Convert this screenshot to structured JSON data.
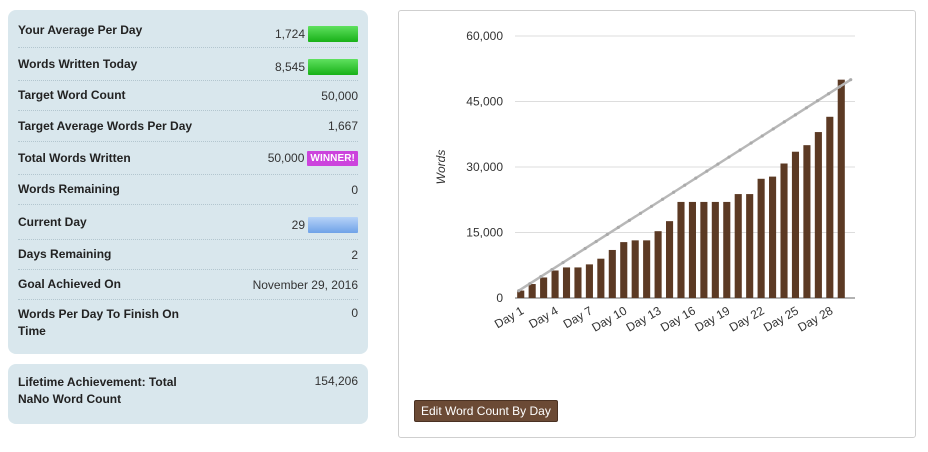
{
  "stats": [
    {
      "label": "Your Average Per Day",
      "value": "1,724",
      "extra": "green-bar",
      "bar_fill": 1.0
    },
    {
      "label": "Words Written Today",
      "value": "8,545",
      "extra": "green-bar",
      "bar_fill": 1.0
    },
    {
      "label": "Target Word Count",
      "value": "50,000"
    },
    {
      "label": "Target Average Words Per Day",
      "value": "1,667"
    },
    {
      "label": "Total Words Written",
      "value": "50,000",
      "extra": "winner",
      "badge": "WINNER!"
    },
    {
      "label": "Words Remaining",
      "value": "0"
    },
    {
      "label": "Current Day",
      "value": "29",
      "extra": "blue-bar",
      "bar_fill": 0.93
    },
    {
      "label": "Days Remaining",
      "value": "2"
    },
    {
      "label": "Goal Achieved On",
      "value": "November 29, 2016"
    },
    {
      "label": "Words Per Day To Finish On Time",
      "value": "0"
    }
  ],
  "lifetime": {
    "label": "Lifetime Achievement: Total NaNo Word Count",
    "value": "154,206"
  },
  "edit_button_label": "Edit Word Count By Day",
  "colors": {
    "panel_bg": "#d9e7ed",
    "bar_color": "#5c3a24",
    "target_line": "#b8b8b8",
    "winner": "#cc44dd",
    "button_bg": "#6b4a35"
  },
  "chart_data": {
    "type": "bar",
    "ylabel": "Words",
    "ylim": [
      0,
      60000
    ],
    "yticks": [
      0,
      15000,
      30000,
      45000,
      60000
    ],
    "ytick_labels": [
      "0",
      "15,000",
      "30,000",
      "45,000",
      "60,000"
    ],
    "xtick_labels": [
      "Day 1",
      "Day 4",
      "Day 7",
      "Day 10",
      "Day 13",
      "Day 16",
      "Day 19",
      "Day 22",
      "Day 25",
      "Day 28"
    ],
    "categories": [
      "Day 1",
      "Day 2",
      "Day 3",
      "Day 4",
      "Day 5",
      "Day 6",
      "Day 7",
      "Day 8",
      "Day 9",
      "Day 10",
      "Day 11",
      "Day 12",
      "Day 13",
      "Day 14",
      "Day 15",
      "Day 16",
      "Day 17",
      "Day 18",
      "Day 19",
      "Day 20",
      "Day 21",
      "Day 22",
      "Day 23",
      "Day 24",
      "Day 25",
      "Day 26",
      "Day 27",
      "Day 28",
      "Day 29"
    ],
    "values": [
      1700,
      3200,
      4700,
      6300,
      7000,
      7000,
      7700,
      9000,
      11000,
      12800,
      13200,
      13200,
      15300,
      17600,
      22000,
      22000,
      22000,
      22000,
      22000,
      23800,
      23800,
      27300,
      27800,
      30800,
      33500,
      35000,
      38000,
      41500,
      50000
    ],
    "target_line": {
      "x": [
        "Day 1",
        "Day 30"
      ],
      "y": [
        1667,
        50000
      ]
    },
    "grid": true
  }
}
